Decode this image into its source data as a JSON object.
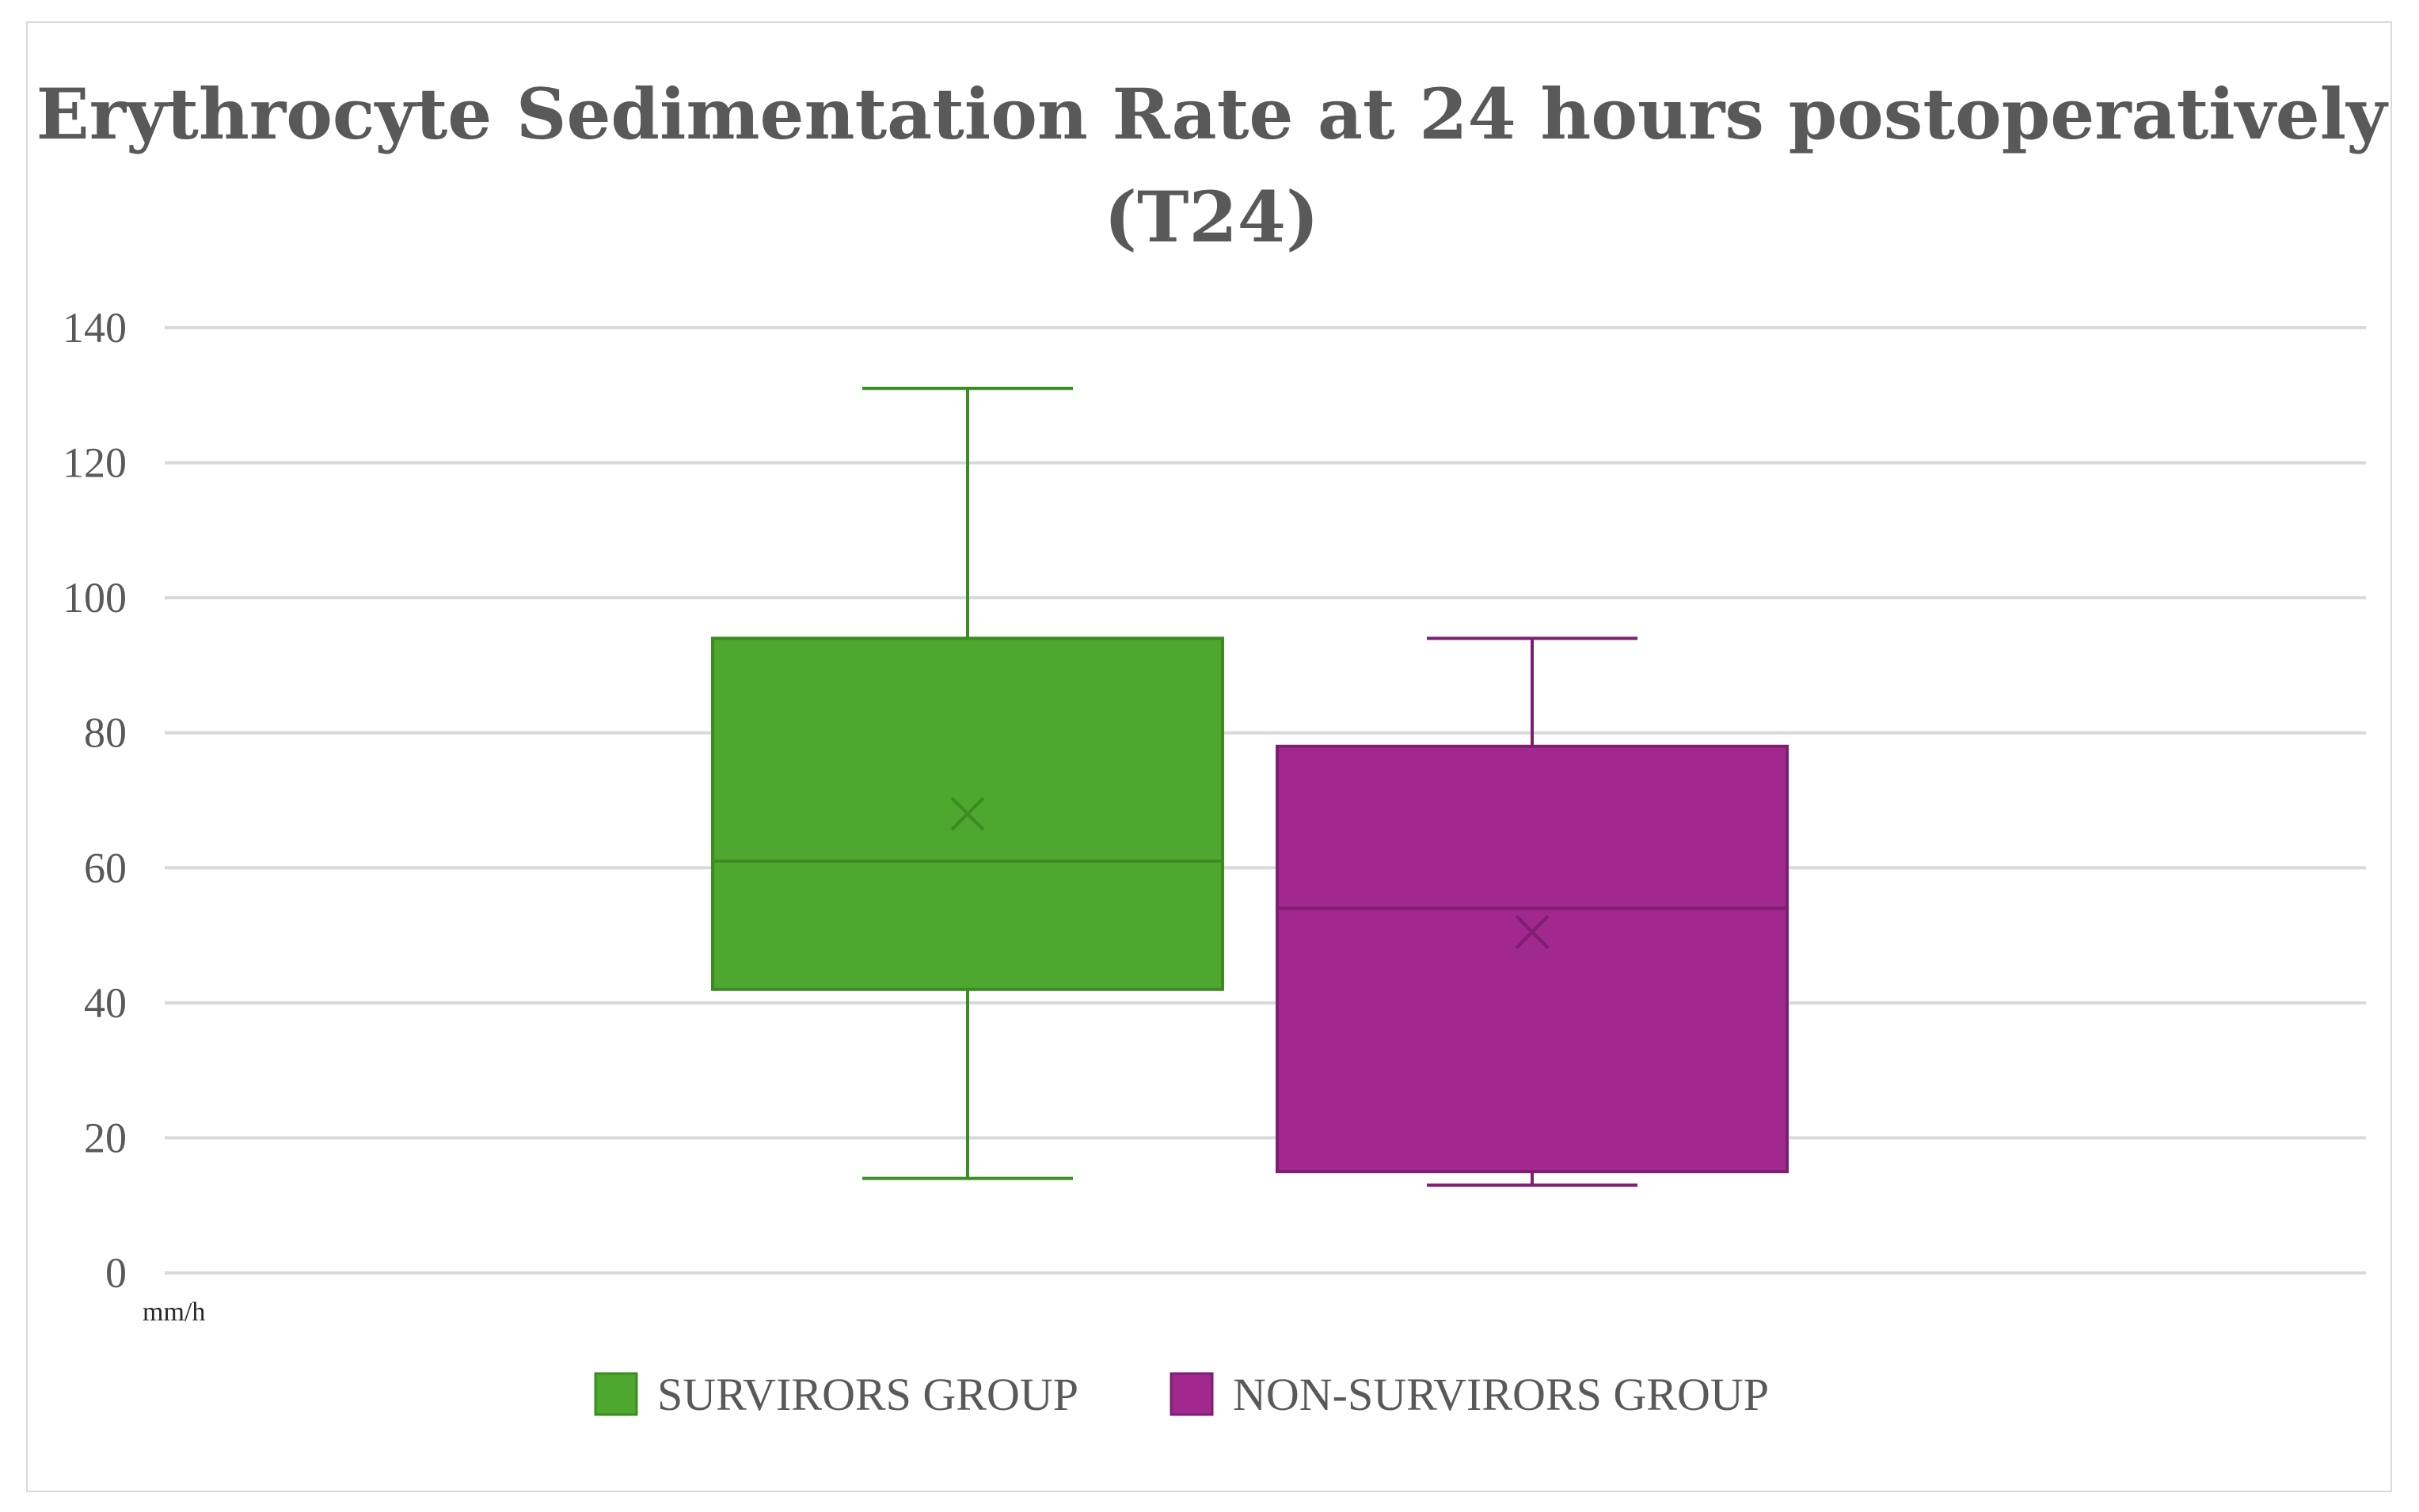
{
  "chart_data": {
    "type": "box",
    "title_lines": [
      "Erythrocyte Sedimentation Rate at 24 hours postoperatively",
      "(T24)"
    ],
    "ylabel": "mm/h",
    "ylim": [
      0,
      140
    ],
    "yticks": [
      0,
      20,
      40,
      60,
      80,
      100,
      120,
      140
    ],
    "grid": true,
    "legend_position": "bottom",
    "series": [
      {
        "name": "SURVIRORS GROUP",
        "color": "#4ea72e",
        "stroke": "#3d8c22",
        "min": 14,
        "q1": 42,
        "median": 61,
        "q3": 94,
        "max": 131,
        "mean": 68
      },
      {
        "name": "NON-SURVIRORS GROUP",
        "color": "#a0288f",
        "stroke": "#7d1f70",
        "min": 13,
        "q1": 15,
        "median": 54,
        "q3": 78,
        "max": 94,
        "mean": 50.5
      }
    ]
  }
}
